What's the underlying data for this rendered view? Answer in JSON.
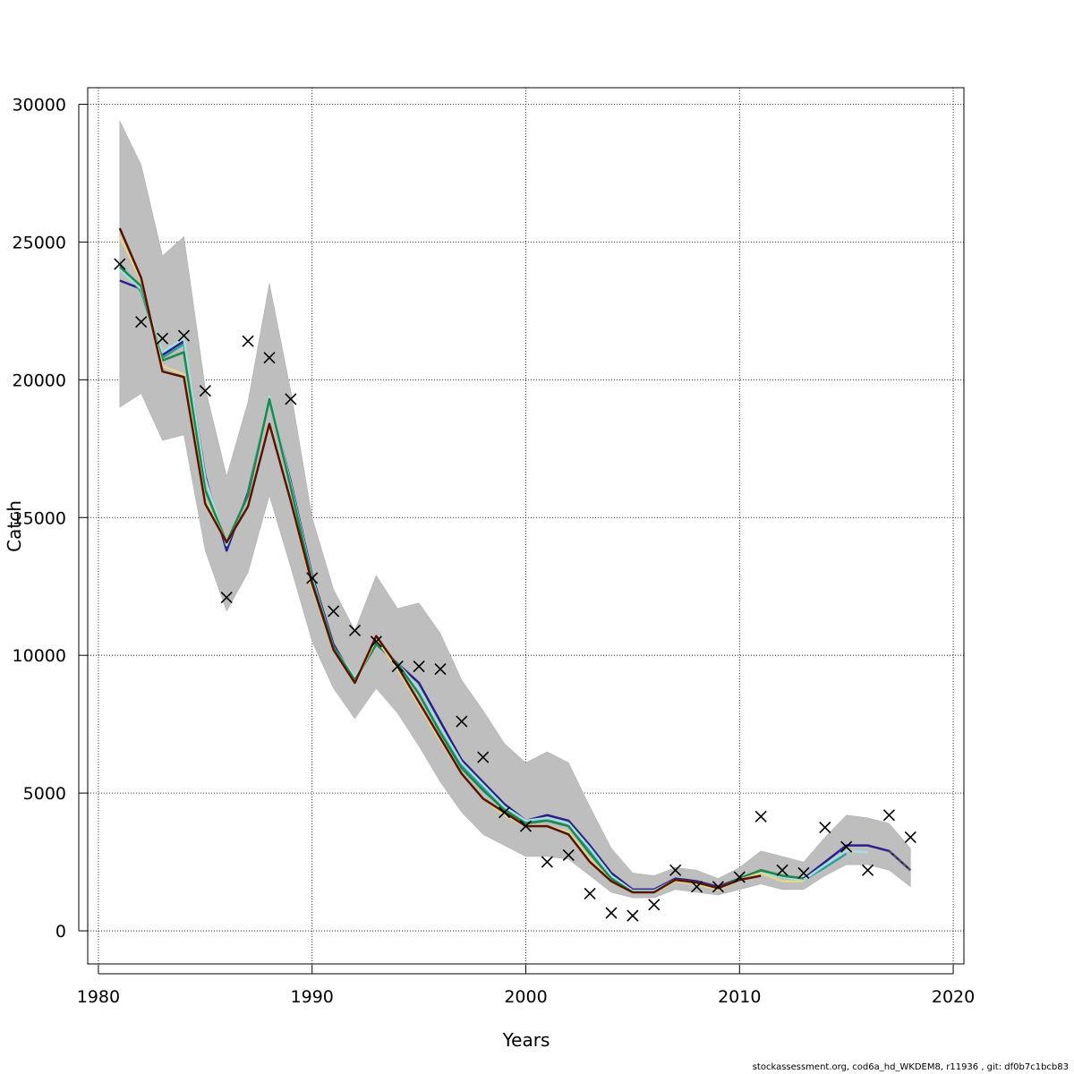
{
  "chart_data": {
    "type": "line",
    "xlabel": "Years",
    "ylabel": "Catch",
    "xlim": [
      1979.5,
      2020.5
    ],
    "ylim": [
      -1200,
      30600
    ],
    "xticks": [
      1980,
      1990,
      2000,
      2010,
      2020
    ],
    "yticks": [
      0,
      5000,
      10000,
      15000,
      20000,
      25000,
      30000
    ],
    "grid": true,
    "confidence_band": {
      "x": [
        1981,
        1982,
        1983,
        1984,
        1985,
        1986,
        1987,
        1988,
        1989,
        1990,
        1991,
        1992,
        1993,
        1994,
        1995,
        1996,
        1997,
        1998,
        1999,
        2000,
        2001,
        2002,
        2003,
        2004,
        2005,
        2006,
        2007,
        2008,
        2009,
        2010,
        2011,
        2012,
        2013,
        2014,
        2015,
        2016,
        2017,
        2018
      ],
      "upper": [
        29400,
        27800,
        24500,
        25200,
        19700,
        16500,
        19200,
        23500,
        19600,
        15000,
        12400,
        10900,
        12900,
        11700,
        11900,
        10800,
        9100,
        8000,
        6800,
        6100,
        6500,
        6100,
        4500,
        3000,
        2100,
        2000,
        2300,
        2200,
        1900,
        2300,
        2900,
        2700,
        2500,
        3400,
        4200,
        4100,
        3900,
        3000
      ],
      "lower": [
        19000,
        19500,
        17800,
        18000,
        13800,
        11600,
        13000,
        15800,
        13200,
        10500,
        8800,
        7700,
        8800,
        7900,
        6700,
        5400,
        4300,
        3500,
        3100,
        2700,
        2700,
        2600,
        2000,
        1400,
        1200,
        1200,
        1500,
        1400,
        1300,
        1500,
        1700,
        1500,
        1500,
        2000,
        2400,
        2400,
        2200,
        1600
      ]
    },
    "series": [
      {
        "color": "#2b1f8a",
        "x": [
          1981,
          1982,
          1983,
          1984,
          1985,
          1986,
          1987,
          1988,
          1989,
          1990,
          1991,
          1992,
          1993,
          1994,
          1995,
          1996,
          1997,
          1998,
          1999,
          2000,
          2001,
          2002,
          2003,
          2004,
          2005,
          2006,
          2007,
          2008,
          2009,
          2010,
          2011,
          2012,
          2013,
          2014,
          2015,
          2016,
          2017,
          2018
        ],
        "values": [
          23600,
          23300,
          20900,
          21400,
          16500,
          13800,
          15900,
          19300,
          16300,
          12900,
          10400,
          9100,
          10400,
          9700,
          9000,
          7600,
          6200,
          5400,
          4600,
          4000,
          4200,
          4000,
          3100,
          2100,
          1500,
          1500,
          1900,
          1800,
          1600,
          1900,
          2200,
          2000,
          1900,
          2500,
          3100,
          3100,
          2900,
          2200
        ]
      },
      {
        "color": "#2e9e9a",
        "x": [
          1981,
          1982,
          1983,
          1984,
          1985,
          1986,
          1987,
          1988,
          1989,
          1990,
          1991,
          1992,
          1993,
          1994,
          1995,
          1996,
          1997,
          1998,
          1999,
          2000,
          2001,
          2002,
          2003,
          2004,
          2005,
          2006,
          2007,
          2008,
          2009,
          2010,
          2011,
          2012,
          2013,
          2014,
          2015
        ],
        "values": [
          24200,
          23200,
          20800,
          21300,
          16400,
          14000,
          15800,
          19300,
          16200,
          12700,
          10300,
          9100,
          10400,
          9700,
          8800,
          7400,
          6000,
          5200,
          4400,
          3900,
          4100,
          3800,
          2900,
          2000,
          1450,
          1450,
          1850,
          1750,
          1550,
          1850,
          2100,
          1950,
          1850,
          2300,
          2800
        ]
      },
      {
        "color": "#a8dde0",
        "x": [
          1981,
          1982,
          1983,
          1984,
          1985,
          1986,
          1987,
          1988,
          1989,
          1990,
          1991,
          1992,
          1993,
          1994,
          1995,
          1996,
          1997,
          1998,
          1999,
          2000,
          2001,
          2002,
          2003,
          2004,
          2005,
          2006,
          2007,
          2008,
          2009,
          2010,
          2011,
          2012,
          2013,
          2014,
          2015,
          2016
        ],
        "values": [
          24000,
          23300,
          21000,
          21500,
          16400,
          14000,
          15800,
          19400,
          16200,
          12800,
          10300,
          9200,
          10400,
          9700,
          8800,
          7400,
          6100,
          5300,
          4500,
          4000,
          4100,
          3900,
          3000,
          2000,
          1450,
          1450,
          1850,
          1750,
          1550,
          1850,
          2100,
          1950,
          1850,
          2400,
          2900,
          2850
        ]
      },
      {
        "color": "#1a8a4a",
        "x": [
          1981,
          1982,
          1983,
          1984,
          1985,
          1986,
          1987,
          1988,
          1989,
          1990,
          1991,
          1992,
          1993,
          1994,
          1995,
          1996,
          1997,
          1998,
          1999,
          2000,
          2001,
          2002,
          2003,
          2004,
          2005,
          2006,
          2007,
          2008,
          2009,
          2010,
          2011,
          2012,
          2013
        ],
        "values": [
          24100,
          23400,
          20700,
          21000,
          16000,
          14100,
          15800,
          19300,
          16100,
          12700,
          10300,
          9100,
          10400,
          9700,
          8600,
          7200,
          5900,
          5100,
          4400,
          3900,
          4000,
          3800,
          2800,
          1900,
          1400,
          1400,
          1850,
          1750,
          1550,
          1900,
          2200,
          2000,
          1900
        ]
      },
      {
        "color": "#e0d88a",
        "x": [
          1981,
          1982,
          1983,
          1984,
          1985,
          1986,
          1987,
          1988,
          1989,
          1990,
          1991,
          1992,
          1993,
          1994,
          1995,
          1996,
          1997,
          1998,
          1999,
          2000,
          2001,
          2002,
          2003,
          2004,
          2005,
          2006,
          2007,
          2008,
          2009,
          2010,
          2011,
          2012,
          2013
        ],
        "values": [
          25200,
          23600,
          20500,
          20200,
          15600,
          14100,
          15400,
          18400,
          15600,
          12500,
          10200,
          9000,
          10600,
          9500,
          8200,
          6900,
          5700,
          4800,
          4200,
          3800,
          3800,
          3600,
          2600,
          1800,
          1400,
          1400,
          1800,
          1700,
          1500,
          1850,
          2100,
          1800,
          1800
        ]
      },
      {
        "color": "#5c1200",
        "x": [
          1981,
          1982,
          1983,
          1984,
          1985,
          1986,
          1987,
          1988,
          1989,
          1990,
          1991,
          1992,
          1993,
          1994,
          1995,
          1996,
          1997,
          1998,
          1999,
          2000,
          2001,
          2002,
          2003,
          2004,
          2005,
          2006,
          2007,
          2008,
          2009,
          2010,
          2011
        ],
        "values": [
          25500,
          23700,
          20300,
          20100,
          15500,
          14100,
          15400,
          18400,
          15600,
          12600,
          10200,
          9000,
          10700,
          9600,
          8300,
          7000,
          5700,
          4800,
          4300,
          3800,
          3800,
          3500,
          2500,
          1800,
          1400,
          1400,
          1850,
          1750,
          1550,
          1850,
          2000
        ]
      }
    ],
    "observations": {
      "x": [
        1981,
        1982,
        1983,
        1984,
        1985,
        1986,
        1987,
        1988,
        1989,
        1990,
        1991,
        1992,
        1993,
        1994,
        1995,
        1996,
        1997,
        1998,
        1999,
        2000,
        2001,
        2002,
        2003,
        2004,
        2005,
        2006,
        2007,
        2008,
        2009,
        2010,
        2011,
        2012,
        2013,
        2014,
        2015,
        2016,
        2017,
        2018
      ],
      "values": [
        24200,
        22100,
        21500,
        21600,
        19600,
        12100,
        21400,
        20800,
        19300,
        12800,
        11600,
        10900,
        10500,
        9600,
        9600,
        9500,
        7600,
        6300,
        4300,
        3800,
        2500,
        2750,
        1350,
        650,
        550,
        950,
        2200,
        1600,
        1600,
        1950,
        4150,
        2200,
        2100,
        3750,
        3050,
        2200,
        4200,
        3400
      ]
    }
  },
  "footer": {
    "text": "stockassessment.org, cod6a_hd_WKDEM8, r11936 , git: df0b7c1bcb83"
  }
}
